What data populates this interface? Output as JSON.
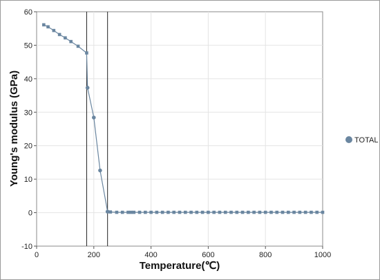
{
  "chart_data": {
    "type": "line",
    "xlabel": "Temperature(℃)",
    "ylabel": "Young's modulus (GPa)",
    "xlim": [
      0,
      1000
    ],
    "ylim": [
      -10,
      60
    ],
    "x_ticks": [
      0,
      200,
      400,
      600,
      800,
      1000
    ],
    "y_ticks": [
      -10,
      0,
      10,
      20,
      30,
      40,
      50,
      60
    ],
    "grid": true,
    "legend_position": "right",
    "vertical_lines": [
      175,
      248
    ],
    "series": [
      {
        "name": "TOTAL",
        "color": "#6a86a0",
        "x": [
          25,
          40,
          60,
          80,
          100,
          120,
          145,
          175,
          178,
          200,
          222,
          248,
          258,
          280,
          300,
          320,
          330,
          340,
          360,
          380,
          400,
          420,
          440,
          460,
          480,
          500,
          520,
          540,
          560,
          580,
          600,
          620,
          640,
          660,
          680,
          700,
          720,
          740,
          760,
          780,
          800,
          820,
          840,
          860,
          880,
          900,
          920,
          940,
          960,
          980,
          1000
        ],
        "y": [
          56.1,
          55.5,
          54.4,
          53.2,
          52.2,
          51.1,
          49.7,
          47.7,
          37.3,
          28.4,
          12.6,
          0.3,
          0.2,
          0.1,
          0.1,
          0.1,
          0.1,
          0.1,
          0.1,
          0.1,
          0.1,
          0.1,
          0.1,
          0.1,
          0.1,
          0.1,
          0.1,
          0.1,
          0.1,
          0.1,
          0.1,
          0.1,
          0.1,
          0.1,
          0.1,
          0.1,
          0.1,
          0.1,
          0.1,
          0.1,
          0.1,
          0.1,
          0.1,
          0.1,
          0.1,
          0.1,
          0.1,
          0.1,
          0.1,
          0.1,
          0.1
        ],
        "round_marker_x": [
          178,
          200,
          222,
          248
        ]
      }
    ]
  }
}
